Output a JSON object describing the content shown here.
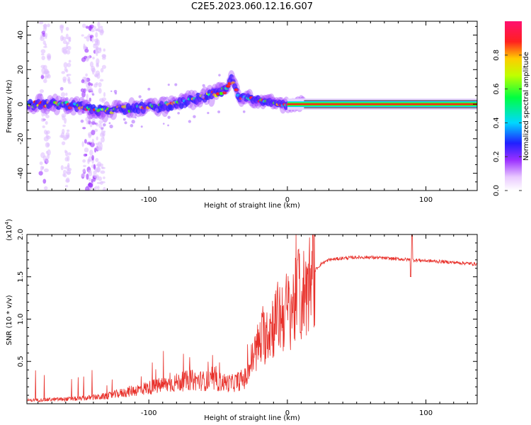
{
  "title": "C2E5.2023.060.12.16.G07",
  "chart_data": [
    {
      "type": "heatmap",
      "title": "C2E5.2023.060.12.16.G07",
      "xlabel": "Height of straight line (km)",
      "ylabel": "Frequency (Hz)",
      "xlim": [
        -188,
        137
      ],
      "ylim": [
        -50,
        48
      ],
      "xticks": [
        -100,
        0,
        100
      ],
      "xtick_labels": [
        "-100",
        "0",
        "100"
      ],
      "yticks": [
        -40,
        -20,
        0,
        20,
        40
      ],
      "ytick_labels": [
        "-40",
        "-20",
        "0",
        "20",
        "40"
      ],
      "colorbar": {
        "label": "Normalized spectral amplitude",
        "range": [
          0,
          1
        ],
        "ticks": [
          0.0,
          0.2,
          0.4,
          0.6,
          0.8
        ],
        "tick_labels": [
          "0.0",
          "0.2",
          "0.4",
          "0.6",
          "0.8"
        ]
      },
      "ridge": {
        "description_points_km_hz": [
          [
            -188,
            0
          ],
          [
            -170,
            0
          ],
          [
            -150,
            -1
          ],
          [
            -135,
            -4
          ],
          [
            -120,
            -3
          ],
          [
            -100,
            -2
          ],
          [
            -80,
            0
          ],
          [
            -60,
            4
          ],
          [
            -45,
            8
          ],
          [
            -40,
            15
          ],
          [
            -35,
            4
          ],
          [
            -20,
            2
          ],
          [
            -10,
            1
          ],
          [
            0,
            -1
          ],
          [
            10,
            0
          ],
          [
            137,
            0
          ]
        ]
      }
    },
    {
      "type": "line",
      "title": "",
      "xlabel": "Height of straight line (km)",
      "ylabel": "SNR (10 * v/v)",
      "exponent_label": "(x10",
      "exponent_power": "4",
      "exponent_close": ")",
      "xlim": [
        -188,
        137
      ],
      "ylim": [
        0,
        2.0
      ],
      "xticks": [
        -100,
        0,
        100
      ],
      "xtick_labels": [
        "-100",
        "0",
        "100"
      ],
      "yticks": [
        0.5,
        1.0,
        1.5,
        2.0
      ],
      "ytick_labels": [
        "0.5",
        "1.0",
        "1.5",
        "2.0"
      ],
      "series": [
        {
          "name": "SNR",
          "color": "#e8302a",
          "envelope_x": [
            -188,
            -170,
            -150,
            -130,
            -110,
            -90,
            -70,
            -50,
            -40,
            -30,
            -25,
            -20,
            -15,
            -10,
            -5,
            0,
            5,
            10,
            15,
            20,
            25,
            30,
            40,
            50,
            60,
            70,
            80,
            90,
            100,
            110,
            120,
            137
          ],
          "envelope_y": [
            0.04,
            0.05,
            0.06,
            0.09,
            0.16,
            0.22,
            0.28,
            0.26,
            0.24,
            0.3,
            0.55,
            0.72,
            0.85,
            0.95,
            1.05,
            1.1,
            1.18,
            1.25,
            1.4,
            1.58,
            1.66,
            1.7,
            1.72,
            1.73,
            1.73,
            1.72,
            1.71,
            1.7,
            1.69,
            1.68,
            1.67,
            1.65
          ]
        }
      ]
    }
  ]
}
